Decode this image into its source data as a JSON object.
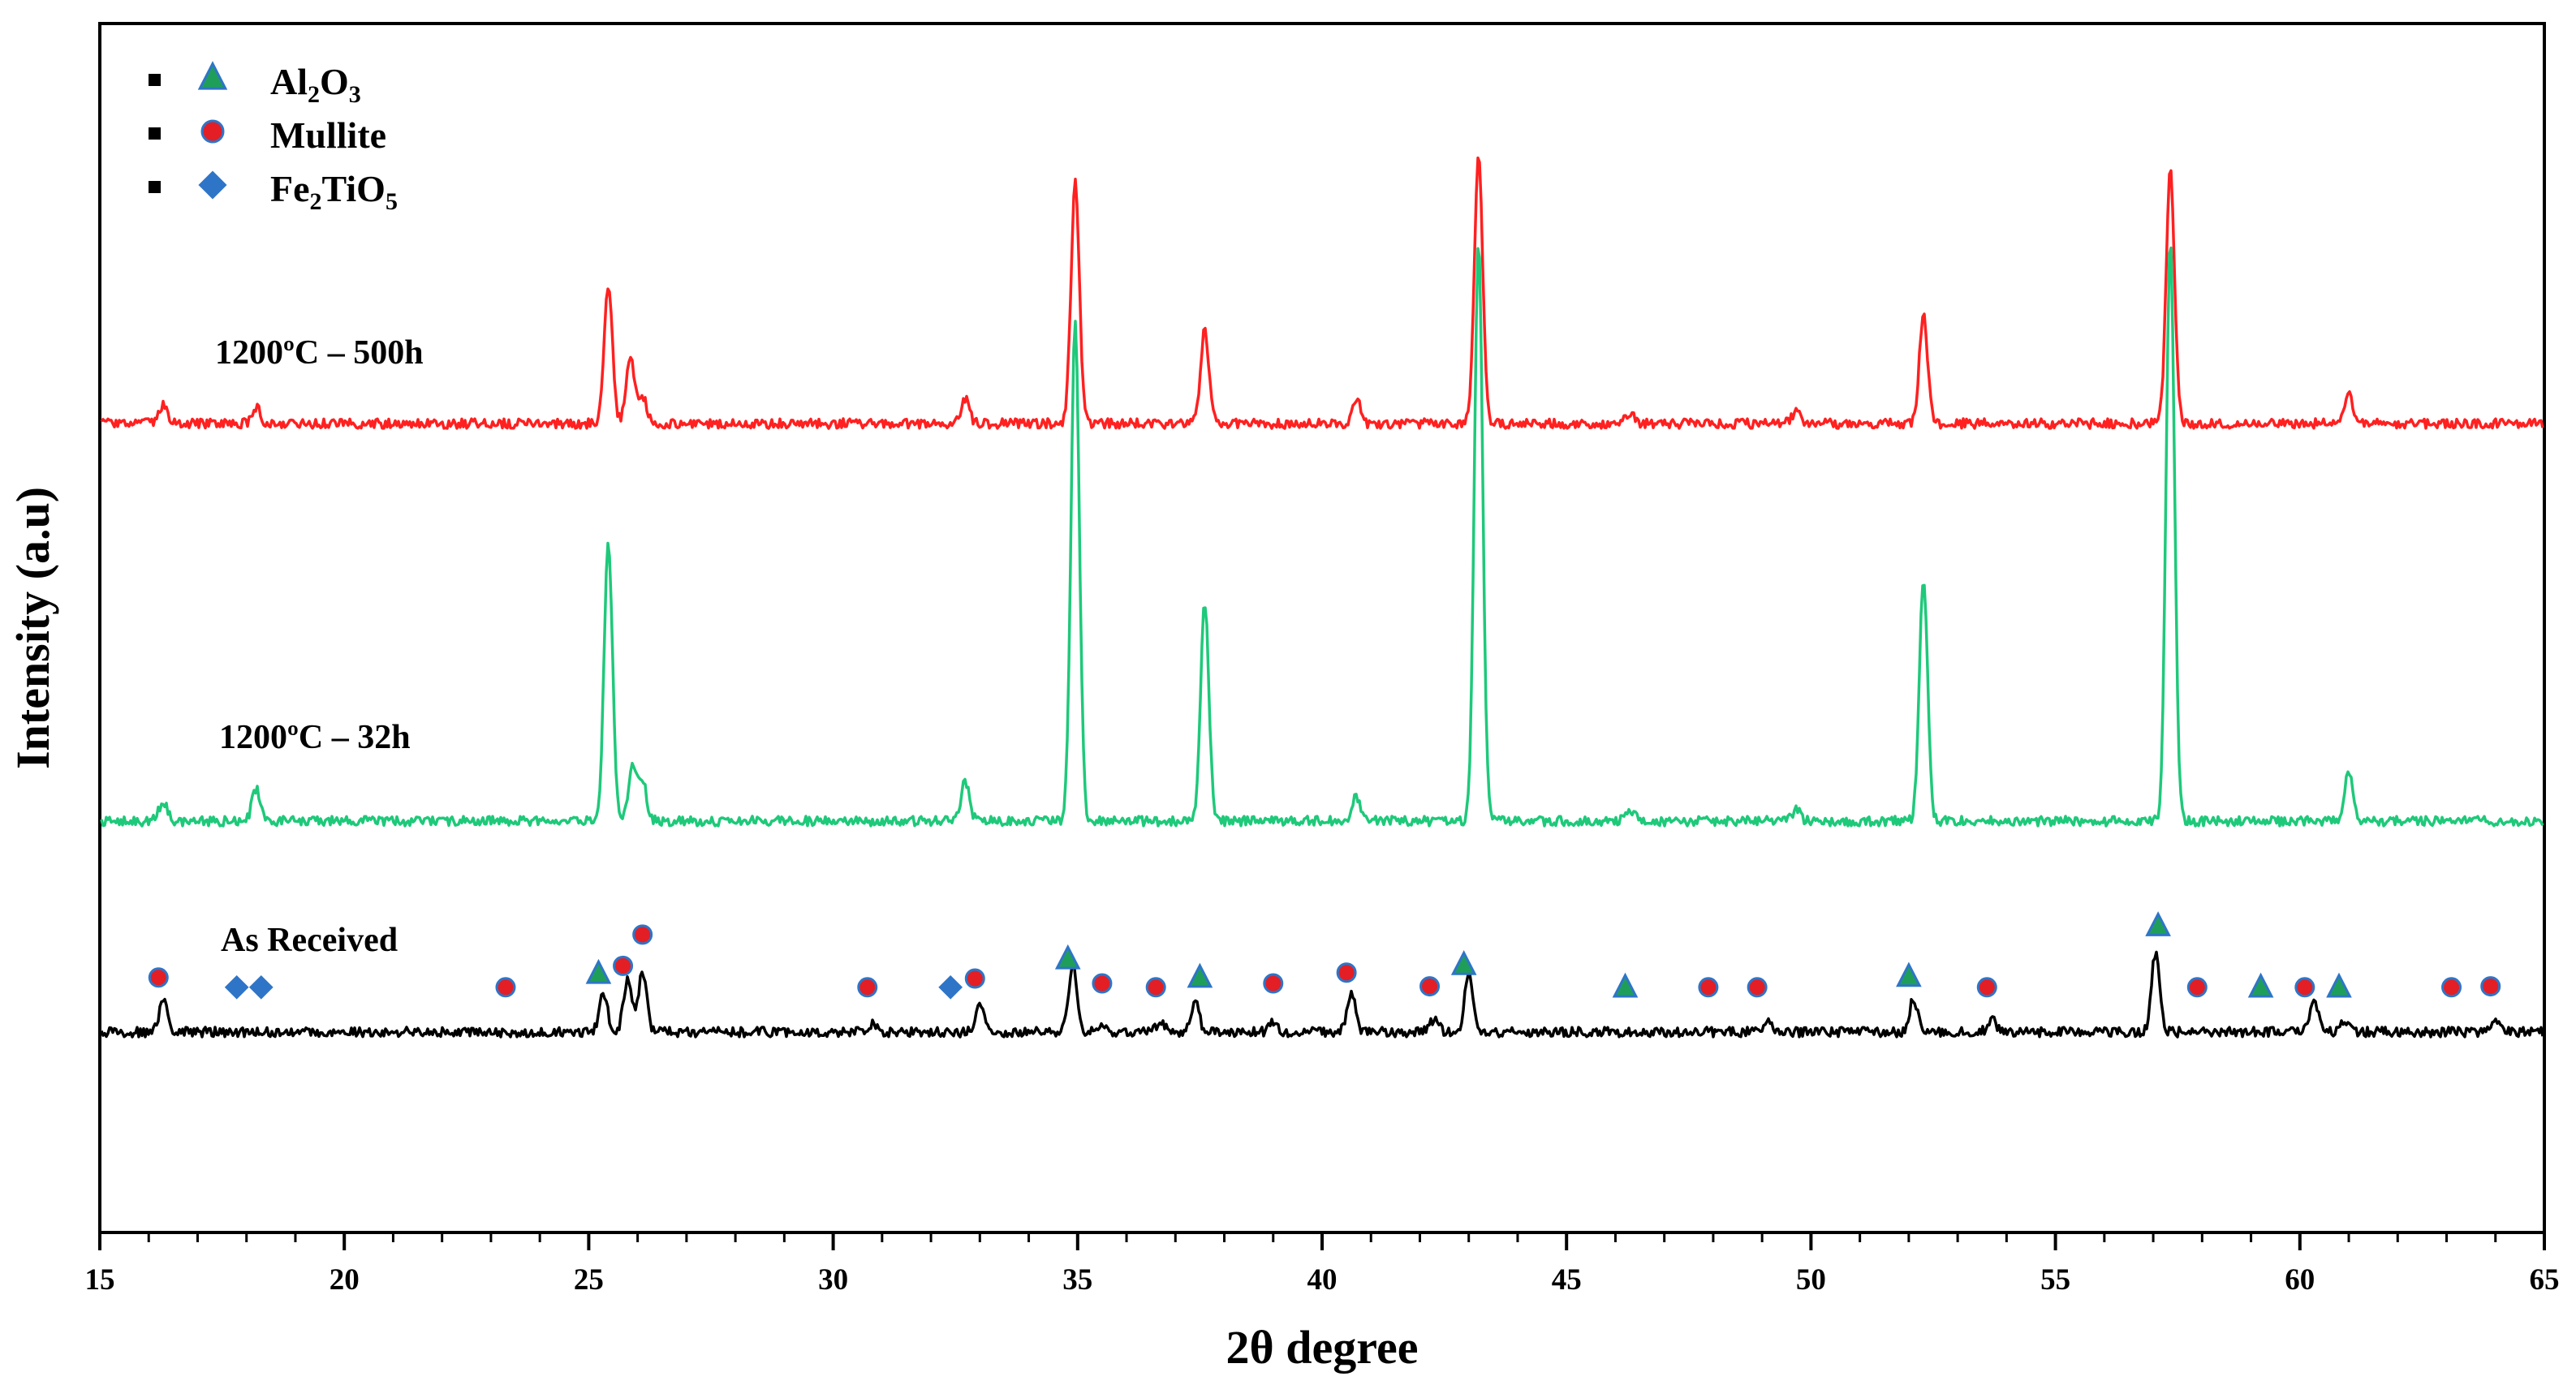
{
  "chart_data": {
    "type": "line",
    "xlabel": "2θ degree",
    "ylabel": "Intensity (a.u)",
    "xlim": [
      15,
      65
    ],
    "xticks": [
      15,
      20,
      25,
      30,
      35,
      40,
      45,
      50,
      55,
      60,
      65
    ],
    "y_ticks_shown": false,
    "grid": false,
    "legend_position": "top-left",
    "legend": [
      {
        "label": "Al2O3",
        "label_base": [
          "Al",
          "O"
        ],
        "label_sub": [
          "2",
          "3"
        ],
        "marker": "triangle",
        "color": "#1f9e5a"
      },
      {
        "label": "Mullite",
        "marker": "circle",
        "color": "#e31e24"
      },
      {
        "label": "Fe2TiO5",
        "label_base": [
          "Fe",
          "TiO"
        ],
        "label_sub": [
          "2",
          "5"
        ],
        "marker": "diamond",
        "color": "#2e75c8"
      }
    ],
    "series": [
      {
        "name": "1200ºC – 500h",
        "color": "#ff2020",
        "baseline": 1.0,
        "peaks": [
          {
            "x": 16.3,
            "h": 0.07
          },
          {
            "x": 18.2,
            "h": 0.06
          },
          {
            "x": 25.4,
            "h": 0.52
          },
          {
            "x": 25.85,
            "h": 0.24
          },
          {
            "x": 26.1,
            "h": 0.1
          },
          {
            "x": 32.7,
            "h": 0.09
          },
          {
            "x": 34.95,
            "h": 0.9
          },
          {
            "x": 37.6,
            "h": 0.35
          },
          {
            "x": 40.7,
            "h": 0.09
          },
          {
            "x": 43.2,
            "h": 1.0
          },
          {
            "x": 46.3,
            "h": 0.04
          },
          {
            "x": 49.7,
            "h": 0.05
          },
          {
            "x": 52.3,
            "h": 0.4
          },
          {
            "x": 57.35,
            "h": 0.95
          },
          {
            "x": 61.0,
            "h": 0.11
          }
        ]
      },
      {
        "name": "1200ºC – 32h",
        "color": "#1ec97a",
        "baseline": 0.5,
        "peaks": [
          {
            "x": 16.3,
            "h": 0.05
          },
          {
            "x": 18.2,
            "h": 0.08
          },
          {
            "x": 25.4,
            "h": 0.7
          },
          {
            "x": 25.9,
            "h": 0.14
          },
          {
            "x": 26.1,
            "h": 0.1
          },
          {
            "x": 32.7,
            "h": 0.1
          },
          {
            "x": 34.95,
            "h": 1.25
          },
          {
            "x": 37.6,
            "h": 0.55
          },
          {
            "x": 40.7,
            "h": 0.06
          },
          {
            "x": 43.2,
            "h": 1.45
          },
          {
            "x": 46.3,
            "h": 0.03
          },
          {
            "x": 49.7,
            "h": 0.03
          },
          {
            "x": 52.3,
            "h": 0.6
          },
          {
            "x": 57.35,
            "h": 1.45
          },
          {
            "x": 61.0,
            "h": 0.12
          }
        ]
      },
      {
        "name": "As Received",
        "color": "#000000",
        "baseline": 0.0,
        "peaks": [
          {
            "x": 16.3,
            "h": 0.16
          },
          {
            "x": 25.3,
            "h": 0.2
          },
          {
            "x": 25.8,
            "h": 0.28
          },
          {
            "x": 26.1,
            "h": 0.3
          },
          {
            "x": 30.8,
            "h": 0.04
          },
          {
            "x": 33.0,
            "h": 0.15
          },
          {
            "x": 34.9,
            "h": 0.35
          },
          {
            "x": 35.5,
            "h": 0.05
          },
          {
            "x": 36.7,
            "h": 0.06
          },
          {
            "x": 37.4,
            "h": 0.16
          },
          {
            "x": 39.0,
            "h": 0.05
          },
          {
            "x": 40.6,
            "h": 0.21
          },
          {
            "x": 42.3,
            "h": 0.07
          },
          {
            "x": 43.0,
            "h": 0.29
          },
          {
            "x": 49.1,
            "h": 0.05
          },
          {
            "x": 52.1,
            "h": 0.17
          },
          {
            "x": 53.7,
            "h": 0.06
          },
          {
            "x": 57.05,
            "h": 0.41
          },
          {
            "x": 60.3,
            "h": 0.16
          },
          {
            "x": 60.9,
            "h": 0.05
          },
          {
            "x": 64.0,
            "h": 0.07
          }
        ]
      }
    ],
    "phase_markers": [
      {
        "phase": "Mullite",
        "marker": "circle",
        "x": 16.2
      },
      {
        "phase": "Fe2TiO5",
        "marker": "diamond",
        "x": 17.8
      },
      {
        "phase": "Fe2TiO5",
        "marker": "diamond",
        "x": 18.3
      },
      {
        "phase": "Mullite",
        "marker": "circle",
        "x": 23.3
      },
      {
        "phase": "Al2O3",
        "marker": "triangle",
        "x": 25.2
      },
      {
        "phase": "Mullite",
        "marker": "circle",
        "x": 25.7
      },
      {
        "phase": "Mullite",
        "marker": "circle",
        "x": 26.1
      },
      {
        "phase": "Mullite",
        "marker": "circle",
        "x": 30.7
      },
      {
        "phase": "Fe2TiO5",
        "marker": "diamond",
        "x": 32.4
      },
      {
        "phase": "Mullite",
        "marker": "circle",
        "x": 32.9
      },
      {
        "phase": "Al2O3",
        "marker": "triangle",
        "x": 34.8
      },
      {
        "phase": "Mullite",
        "marker": "circle",
        "x": 35.5
      },
      {
        "phase": "Mullite",
        "marker": "circle",
        "x": 36.6
      },
      {
        "phase": "Al2O3",
        "marker": "triangle",
        "x": 37.5
      },
      {
        "phase": "Mullite",
        "marker": "circle",
        "x": 39.0
      },
      {
        "phase": "Mullite",
        "marker": "circle",
        "x": 40.5
      },
      {
        "phase": "Mullite",
        "marker": "circle",
        "x": 42.2
      },
      {
        "phase": "Al2O3",
        "marker": "triangle",
        "x": 42.9
      },
      {
        "phase": "Al2O3",
        "marker": "triangle",
        "x": 46.2
      },
      {
        "phase": "Mullite",
        "marker": "circle",
        "x": 47.9
      },
      {
        "phase": "Mullite",
        "marker": "circle",
        "x": 48.9
      },
      {
        "phase": "Al2O3",
        "marker": "triangle",
        "x": 52.0
      },
      {
        "phase": "Mullite",
        "marker": "circle",
        "x": 53.6
      },
      {
        "phase": "Al2O3",
        "marker": "triangle",
        "x": 57.1
      },
      {
        "phase": "Mullite",
        "marker": "circle",
        "x": 57.9
      },
      {
        "phase": "Al2O3",
        "marker": "triangle",
        "x": 59.2
      },
      {
        "phase": "Mullite",
        "marker": "circle",
        "x": 60.1
      },
      {
        "phase": "Al2O3",
        "marker": "triangle",
        "x": 60.8
      },
      {
        "phase": "Mullite",
        "marker": "circle",
        "x": 63.1
      },
      {
        "phase": "Mullite",
        "marker": "circle",
        "x": 63.9
      }
    ]
  }
}
